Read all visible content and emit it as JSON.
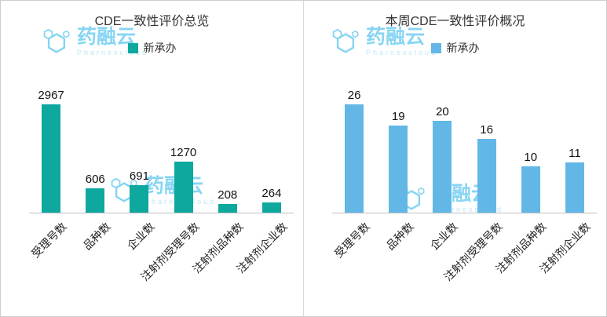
{
  "watermark": {
    "name": "药融云",
    "subtitle": "Pharnexcloud"
  },
  "chart_data": [
    {
      "type": "bar",
      "title": "CDE一致性评价总览",
      "legend": "新承办",
      "color": "#0ea89f",
      "categories": [
        "受理号数",
        "品种数",
        "企业数",
        "注射剂受理号数",
        "注射剂品种数",
        "注射剂企业数"
      ],
      "values": [
        2967,
        606,
        691,
        1270,
        208,
        264
      ],
      "xlabel": "",
      "ylabel": "",
      "ylim": [
        0,
        3100
      ],
      "grid": false,
      "legend_position": "top"
    },
    {
      "type": "bar",
      "title": "本周CDE一致性评价概况",
      "legend": "新承办",
      "color": "#63b7e6",
      "categories": [
        "受理号数",
        "品种数",
        "企业数",
        "注射剂受理号数",
        "注射剂品种数",
        "注射剂企业数"
      ],
      "values": [
        26,
        19,
        20,
        16,
        10,
        11
      ],
      "xlabel": "",
      "ylabel": "",
      "ylim": [
        0,
        27
      ],
      "grid": false,
      "legend_position": "top"
    }
  ]
}
